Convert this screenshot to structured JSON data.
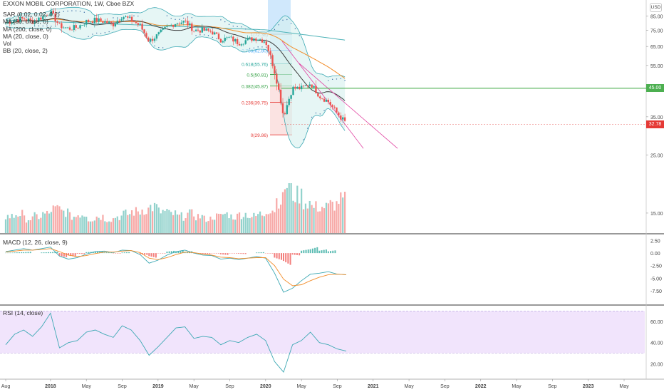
{
  "chart_data": {
    "type": "candlestick",
    "title": "EXXON MOBIL CORPORATION, 1W, Cboe BZX",
    "currency_label": "USD",
    "last_price": "32.78",
    "horizontal_line_price": "45.00",
    "colors": {
      "up": "#26a69a",
      "down": "#ef5350",
      "ma50": "#f28c28",
      "ma200": "#4fb3b8",
      "ma20": "#3c3c3c",
      "bb": "#3ea9b4",
      "bb_fill": "#d5f0ee",
      "sar": "#3f6fa8",
      "hline": "#4caf50",
      "fib_red": "#e53935",
      "fib_green": "#2e9e3f",
      "fib_teal": "#26a69a",
      "fib_blue": "#42a5f5",
      "macd": "#3ea9b4",
      "signal": "#f28c28",
      "rsi": "#3ea9b4",
      "rsi_band": "#f1e4fc"
    },
    "legend": [
      "SAR (0.02, 0.02, 0.2)",
      "MA (50, close, 0)",
      "MA (200, close, 0)",
      "MA (20, close, 0)",
      "Vol",
      "BB (20, close, 2)"
    ],
    "x_ticks": [
      {
        "label": "Aug",
        "date": "2017-08"
      },
      {
        "label": "2018",
        "date": "2018-01"
      },
      {
        "label": "May",
        "date": "2018-05"
      },
      {
        "label": "Sep",
        "date": "2018-09"
      },
      {
        "label": "2019",
        "date": "2019-01"
      },
      {
        "label": "May",
        "date": "2019-05"
      },
      {
        "label": "Sep",
        "date": "2019-09"
      },
      {
        "label": "2020",
        "date": "2020-01"
      },
      {
        "label": "May",
        "date": "2020-05"
      },
      {
        "label": "Sep",
        "date": "2020-09"
      },
      {
        "label": "2021",
        "date": "2021-01"
      },
      {
        "label": "May",
        "date": "2021-05"
      },
      {
        "label": "Sep",
        "date": "2021-09"
      },
      {
        "label": "2022",
        "date": "2022-01"
      },
      {
        "label": "May",
        "date": "2022-05"
      },
      {
        "label": "Sep",
        "date": "2022-09"
      },
      {
        "label": "2023",
        "date": "2023-01"
      },
      {
        "label": "May",
        "date": "2023-05"
      }
    ],
    "y_axis_price": {
      "scale": "log",
      "range": [
        12.5,
        96
      ],
      "ticks": [
        "85.00",
        "75.00",
        "65.00",
        "55.00",
        "35.00",
        "25.00",
        "15.00"
      ]
    },
    "fibonacci": [
      {
        "ratio": "1",
        "price": "72.36",
        "label": "1(72.36)"
      },
      {
        "ratio": "0.786",
        "price": "62.80",
        "label": "0.786(62.80)"
      },
      {
        "ratio": "0.618",
        "price": "55.76",
        "label": "0.618(55.76)"
      },
      {
        "ratio": "0.5",
        "price": "50.81",
        "label": "0.5(50.81)"
      },
      {
        "ratio": "0.382",
        "price": "45.87",
        "label": "0.382(45.87)"
      },
      {
        "ratio": "0.236",
        "price": "39.75",
        "label": "0.236(39.75)"
      },
      {
        "ratio": "0",
        "price": "29.86",
        "label": "0(29.86)"
      }
    ],
    "macd": {
      "label": "MACD (12, 26, close, 9)",
      "range": [
        -9.5,
        3.0
      ],
      "ticks": [
        "2.50",
        "0.00",
        "-2.50",
        "-5.00",
        "-7.50"
      ]
    },
    "rsi": {
      "label": "RSI (14, close)",
      "range": [
        8,
        73
      ],
      "band": [
        30,
        70
      ],
      "ticks": [
        "60.00",
        "40.00",
        "20.00"
      ]
    },
    "price_anchors": [
      {
        "date": "2017-08",
        "price": 80
      },
      {
        "date": "2017-09",
        "price": 82
      },
      {
        "date": "2017-10",
        "price": 83
      },
      {
        "date": "2017-11",
        "price": 81
      },
      {
        "date": "2017-12",
        "price": 84
      },
      {
        "date": "2018-01",
        "price": 88
      },
      {
        "date": "2018-02",
        "price": 78
      },
      {
        "date": "2018-03",
        "price": 76
      },
      {
        "date": "2018-04",
        "price": 77
      },
      {
        "date": "2018-05",
        "price": 81
      },
      {
        "date": "2018-06",
        "price": 82
      },
      {
        "date": "2018-07",
        "price": 81
      },
      {
        "date": "2018-08",
        "price": 79
      },
      {
        "date": "2018-09",
        "price": 85
      },
      {
        "date": "2018-10",
        "price": 82
      },
      {
        "date": "2018-11",
        "price": 78
      },
      {
        "date": "2018-12",
        "price": 68
      },
      {
        "date": "2019-01",
        "price": 72
      },
      {
        "date": "2019-02",
        "price": 77
      },
      {
        "date": "2019-03",
        "price": 80
      },
      {
        "date": "2019-04",
        "price": 81
      },
      {
        "date": "2019-05",
        "price": 75
      },
      {
        "date": "2019-06",
        "price": 75
      },
      {
        "date": "2019-07",
        "price": 74
      },
      {
        "date": "2019-08",
        "price": 69
      },
      {
        "date": "2019-09",
        "price": 70
      },
      {
        "date": "2019-10",
        "price": 67
      },
      {
        "date": "2019-11",
        "price": 69
      },
      {
        "date": "2019-12",
        "price": 70
      },
      {
        "date": "2020-01",
        "price": 68
      },
      {
        "date": "2020-02",
        "price": 52
      },
      {
        "date": "2020-03",
        "price": 35
      },
      {
        "date": "2020-04",
        "price": 45
      },
      {
        "date": "2020-05",
        "price": 45
      },
      {
        "date": "2020-06",
        "price": 47
      },
      {
        "date": "2020-07",
        "price": 42
      },
      {
        "date": "2020-08",
        "price": 40
      },
      {
        "date": "2020-09",
        "price": 36
      },
      {
        "date": "2020-10",
        "price": 33
      }
    ],
    "volume_relative": [
      0.35,
      0.4,
      0.3,
      0.35,
      0.4,
      0.5,
      0.45,
      0.35,
      0.4,
      0.3,
      0.35,
      0.3,
      0.35,
      0.4,
      0.45,
      0.5,
      0.55,
      0.45,
      0.4,
      0.35,
      0.4,
      0.35,
      0.3,
      0.35,
      0.4,
      0.35,
      0.4,
      0.35,
      0.4,
      0.5,
      0.7,
      1.0,
      0.8,
      0.65,
      0.55,
      0.55,
      0.6,
      0.7,
      0.75
    ],
    "macd_series": [
      0.3,
      0.6,
      0.9,
      0.6,
      0.9,
      1.2,
      -0.6,
      -1.2,
      -0.9,
      -0.2,
      0.3,
      0.4,
      0.1,
      0.6,
      0.5,
      -0.3,
      -2.0,
      -1.4,
      -0.4,
      0.3,
      0.6,
      0.0,
      -0.4,
      -0.5,
      -1.2,
      -1.0,
      -1.3,
      -1.0,
      -0.7,
      -1.0,
      -4.0,
      -7.8,
      -7.0,
      -5.5,
      -4.2,
      -4.0,
      -3.7,
      -4.2,
      -4.3
    ],
    "signal_series": [
      0.2,
      0.4,
      0.6,
      0.6,
      0.7,
      0.9,
      0.3,
      -0.4,
      -0.7,
      -0.5,
      -0.1,
      0.2,
      0.2,
      0.4,
      0.5,
      0.1,
      -1.0,
      -1.3,
      -0.9,
      -0.3,
      0.2,
      0.1,
      -0.2,
      -0.4,
      -0.8,
      -0.9,
      -1.1,
      -1.0,
      -0.9,
      -0.9,
      -2.5,
      -5.2,
      -6.5,
      -6.3,
      -5.5,
      -4.8,
      -4.3,
      -4.2,
      -4.3
    ],
    "rsi_series": [
      38,
      48,
      52,
      46,
      55,
      68,
      35,
      40,
      42,
      50,
      52,
      48,
      45,
      56,
      52,
      42,
      28,
      36,
      45,
      54,
      55,
      44,
      46,
      45,
      38,
      42,
      40,
      45,
      48,
      42,
      22,
      12,
      38,
      42,
      50,
      40,
      38,
      34,
      32
    ]
  }
}
